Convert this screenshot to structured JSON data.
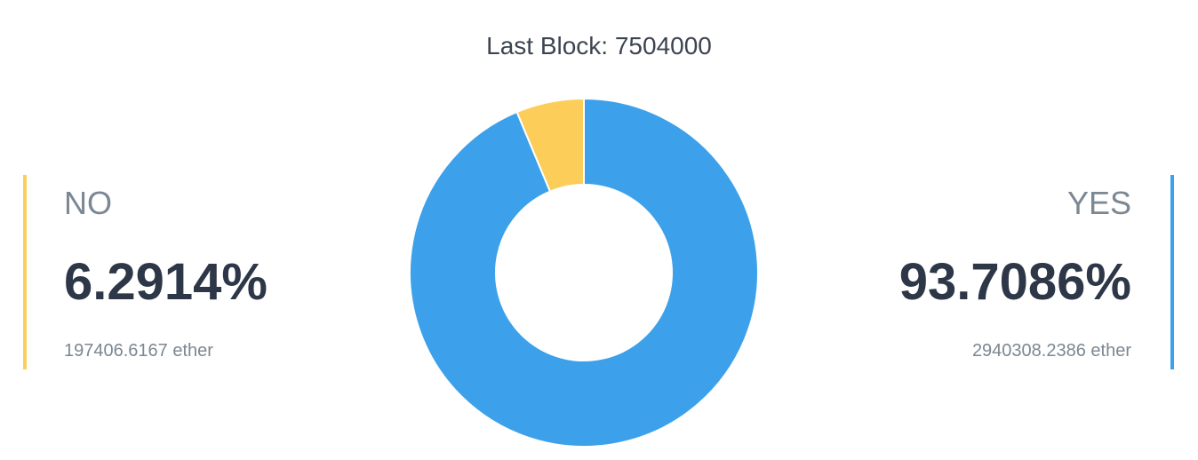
{
  "chart_data": {
    "type": "donut",
    "title": "Last Block: 7504000",
    "categories": [
      "NO",
      "YES"
    ],
    "values": [
      6.2914,
      93.7086
    ],
    "value_labels": [
      "6.2914%",
      "93.7086%"
    ],
    "amount_labels": [
      "197406.6167 ether",
      "2940308.2386 ether"
    ],
    "colors": [
      "#fccd59",
      "#3ca1ea"
    ]
  }
}
